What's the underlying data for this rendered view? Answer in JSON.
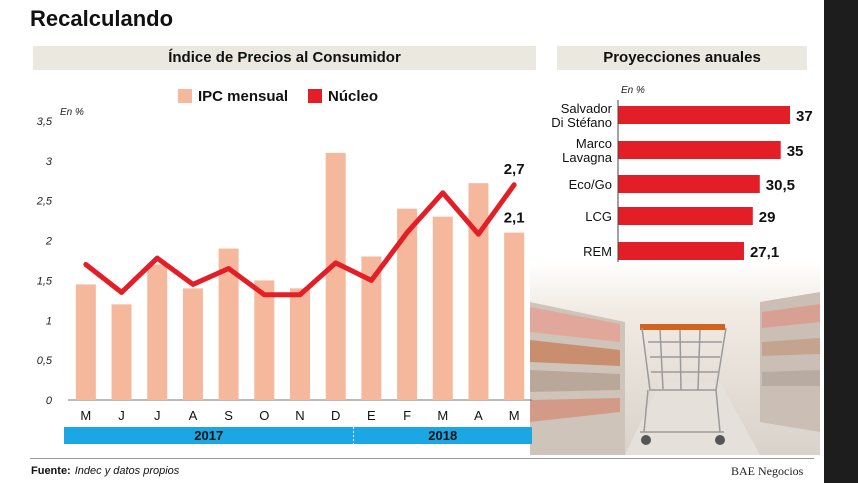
{
  "title": "Recalculando",
  "left_panel_title": "Índice de Precios al Consumidor",
  "right_panel_title": "Proyecciones anuales",
  "footer": {
    "label": "Fuente:",
    "text": "Indec y datos propios"
  },
  "credit": "BAE Negocios",
  "colors": {
    "bar": "#f5b89c",
    "line": "#e41e26",
    "year_band": "#1aa7e3",
    "projection_bar": "#e41e26"
  },
  "chart_data": [
    {
      "type": "bar",
      "unit_label": "En %",
      "categories": [
        "M",
        "J",
        "J",
        "A",
        "S",
        "O",
        "N",
        "D",
        "E",
        "F",
        "M",
        "A",
        "M"
      ],
      "years": [
        {
          "label": "2017",
          "span": [
            0,
            7
          ]
        },
        {
          "label": "2018",
          "span": [
            8,
            12
          ]
        }
      ],
      "series": [
        {
          "name": "IPC mensual",
          "type": "bar",
          "values": [
            1.45,
            1.2,
            1.7,
            1.4,
            1.9,
            1.5,
            1.4,
            3.1,
            1.8,
            2.4,
            2.3,
            2.72,
            2.1
          ]
        },
        {
          "name": "Núcleo",
          "type": "line",
          "values": [
            1.7,
            1.35,
            1.78,
            1.45,
            1.65,
            1.32,
            1.32,
            1.72,
            1.5,
            2.1,
            2.6,
            2.08,
            2.7
          ]
        }
      ],
      "annotations": [
        {
          "text": "2,7",
          "series": "Núcleo",
          "index": 12
        },
        {
          "text": "2,1",
          "series": "IPC mensual",
          "index": 12
        }
      ],
      "yticks": [
        "0",
        "0,5",
        "1",
        "1,5",
        "2",
        "2,5",
        "3",
        "3,5"
      ],
      "ylim": [
        0,
        3.5
      ],
      "legend": "top-center",
      "grid": false
    },
    {
      "type": "bar",
      "orientation": "horizontal",
      "unit_label": "En %",
      "categories": [
        "Salvador Di Stéfano",
        "Marco Lavagna",
        "Eco/Go",
        "LCG",
        "REM"
      ],
      "category_lines": [
        [
          "Salvador",
          "Di Stéfano"
        ],
        [
          "Marco",
          "Lavagna"
        ],
        [
          "Eco/Go"
        ],
        [
          "LCG"
        ],
        [
          "REM"
        ]
      ],
      "values": [
        37,
        35,
        30.5,
        29,
        27.1
      ],
      "value_labels": [
        "37",
        "35",
        "30,5",
        "29",
        "27,1"
      ],
      "xlim": [
        0,
        37
      ]
    }
  ]
}
